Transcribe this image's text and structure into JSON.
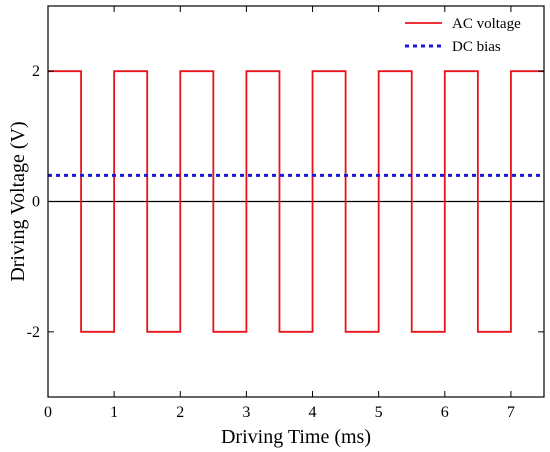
{
  "chart_data": {
    "type": "line",
    "title": "",
    "xlabel": "Driving Time (ms)",
    "ylabel": "Driving Voltage (V)",
    "xlim": [
      0,
      7.5
    ],
    "ylim": [
      -3,
      3
    ],
    "xticks": [
      0,
      1,
      2,
      3,
      4,
      5,
      6,
      7
    ],
    "yticks": [
      -2,
      0,
      2
    ],
    "ytick_labels": [
      "-2",
      "0",
      "2"
    ],
    "grid": false,
    "legend_position": "top-right",
    "zero_line": true,
    "series": [
      {
        "name": "AC voltage",
        "color": "#e8131b",
        "style": "solid",
        "x": [
          0,
          0.5,
          0.5,
          1,
          1,
          1.5,
          1.5,
          2,
          2,
          2.5,
          2.5,
          3,
          3,
          3.5,
          3.5,
          4,
          4,
          4.5,
          4.5,
          5,
          5,
          5.5,
          5.5,
          6,
          6,
          6.5,
          6.5,
          7,
          7,
          7.5
        ],
        "y": [
          2,
          2,
          -2,
          -2,
          2,
          2,
          -2,
          -2,
          2,
          2,
          -2,
          -2,
          2,
          2,
          -2,
          -2,
          2,
          2,
          -2,
          -2,
          2,
          2,
          -2,
          -2,
          2,
          2,
          -2,
          -2,
          2,
          2
        ]
      },
      {
        "name": "DC bias",
        "color": "#1a1ad6",
        "style": "dotted",
        "x": [
          0,
          7.5
        ],
        "y": [
          0.4,
          0.4
        ]
      }
    ]
  }
}
